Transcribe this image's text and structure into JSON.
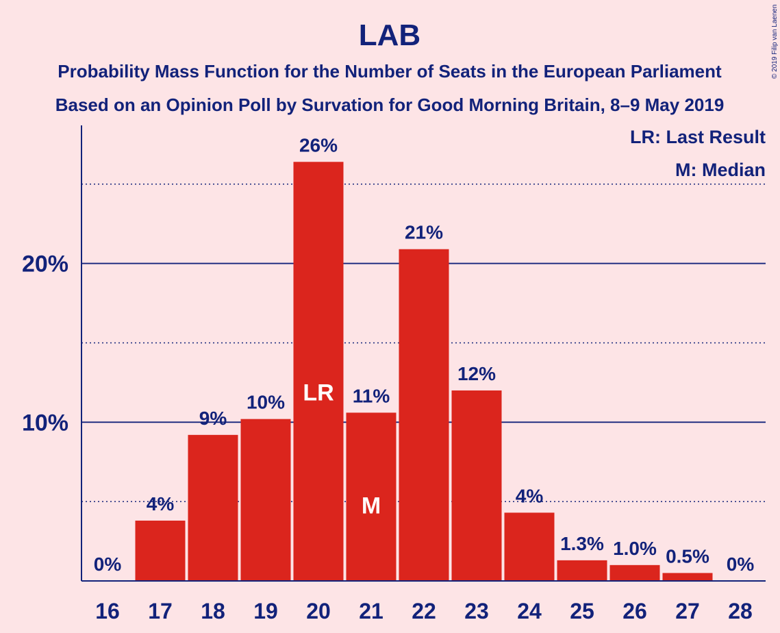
{
  "chart_data": {
    "type": "bar",
    "title": "LAB",
    "subtitle": [
      "Probability Mass Function for the Number of Seats in the European Parliament",
      "Based on an Opinion Poll by Survation for Good Morning Britain, 8–9 May 2019"
    ],
    "categories": [
      "16",
      "17",
      "18",
      "19",
      "20",
      "21",
      "22",
      "23",
      "24",
      "25",
      "26",
      "27",
      "28"
    ],
    "values": [
      0,
      3.8,
      9.2,
      10.2,
      26.4,
      10.6,
      20.9,
      12.0,
      4.3,
      1.3,
      1.0,
      0.5,
      0
    ],
    "data_labels": [
      "0%",
      "4%",
      "9%",
      "10%",
      "26%",
      "11%",
      "21%",
      "12%",
      "4%",
      "1.3%",
      "1.0%",
      "0.5%",
      "0%"
    ],
    "ylim": [
      0,
      28.7
    ],
    "yticks": [
      {
        "value": 10,
        "label": "10%"
      },
      {
        "value": 20,
        "label": "20%"
      }
    ],
    "minor_gridlines": [
      5,
      15,
      25
    ],
    "bar_markers": [
      {
        "category": "20",
        "label": "LR"
      },
      {
        "category": "21",
        "label": "M"
      }
    ],
    "legend": {
      "placement": "top-right",
      "entries": [
        "LR: Last Result",
        "M: Median"
      ]
    },
    "copyright": "© 2019 Filip van Laenen",
    "colors": {
      "background": "#fde4e6",
      "bar": "#db251d",
      "text": "#12227a",
      "axis": "#12227a"
    }
  }
}
